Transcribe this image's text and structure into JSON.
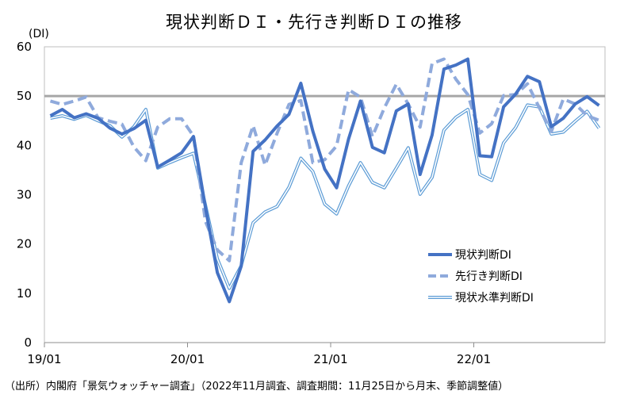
{
  "title": "現状判断ＤＩ・先行き判断ＤＩの推移",
  "source": "（出所）内閣府「景気ウォッチャー調査」（2022年11月調査、調査期間：11月25日から月末、季節調整値）",
  "chart_data": {
    "type": "line",
    "title": "現状判断ＤＩ・先行き判断ＤＩの推移",
    "ylabel": "(DI)",
    "ylim": [
      0,
      60
    ],
    "yticks": [
      "0",
      "10",
      "20",
      "30",
      "40",
      "50",
      "60"
    ],
    "x": [
      "19/01",
      "19/02",
      "19/03",
      "19/04",
      "19/05",
      "19/06",
      "19/07",
      "19/08",
      "19/09",
      "19/10",
      "19/11",
      "19/12",
      "20/01",
      "20/02",
      "20/03",
      "20/04",
      "20/05",
      "20/06",
      "20/07",
      "20/08",
      "20/09",
      "20/10",
      "20/11",
      "20/12",
      "21/01",
      "21/02",
      "21/03",
      "21/04",
      "21/05",
      "21/06",
      "21/07",
      "21/08",
      "21/09",
      "21/10",
      "21/11",
      "21/12",
      "22/01",
      "22/02",
      "22/03",
      "22/04",
      "22/05",
      "22/06",
      "22/07",
      "22/08",
      "22/09",
      "22/10",
      "22/11"
    ],
    "xticks": [
      "19/01",
      "20/01",
      "21/01",
      "22/01"
    ],
    "reference_line": 50,
    "legend_position": "bottom-right",
    "grid": false,
    "series": [
      {
        "name": "現状判断DI",
        "style": "solid-thick",
        "color": "#4472c4",
        "values": [
          46.0,
          47.3,
          45.6,
          46.4,
          45.5,
          43.5,
          42.3,
          43.4,
          45.1,
          35.6,
          37.0,
          38.5,
          41.8,
          27.4,
          14.2,
          8.3,
          15.5,
          38.8,
          41.1,
          43.9,
          46.3,
          52.6,
          42.9,
          35.2,
          31.4,
          41.3,
          49.0,
          39.6,
          38.5,
          47.0,
          48.4,
          34.1,
          42.1,
          55.5,
          56.3,
          57.5,
          37.9,
          37.7,
          47.8,
          50.4,
          54.0,
          52.9,
          43.8,
          45.5,
          48.4,
          49.9,
          48.1
        ]
      },
      {
        "name": "先行き判断DI",
        "style": "dashed",
        "color": "#8faadc",
        "values": [
          49.0,
          48.3,
          49.0,
          49.8,
          45.6,
          44.9,
          44.3,
          39.7,
          36.9,
          43.7,
          45.4,
          45.4,
          41.9,
          24.6,
          18.8,
          16.6,
          36.5,
          44.0,
          36.0,
          42.4,
          48.3,
          49.1,
          36.5,
          37.1,
          39.9,
          51.3,
          49.8,
          41.8,
          47.6,
          52.4,
          48.4,
          43.7,
          56.6,
          57.5,
          53.4,
          50.3,
          42.5,
          44.4,
          50.1,
          50.3,
          52.5,
          47.6,
          42.8,
          49.4,
          48.4,
          46.0,
          45.1
        ]
      },
      {
        "name": "現状水準判断DI",
        "style": "double-thin",
        "color": "#5b9bd5",
        "values": [
          45.5,
          46.0,
          45.3,
          46.1,
          45.0,
          44.0,
          41.7,
          43.8,
          47.3,
          35.4,
          36.5,
          37.5,
          38.4,
          27.9,
          17.0,
          11.0,
          15.6,
          24.3,
          26.5,
          27.6,
          31.5,
          37.4,
          34.7,
          28.1,
          26.1,
          31.8,
          36.5,
          32.5,
          31.4,
          35.4,
          39.5,
          30.1,
          33.5,
          43.1,
          45.7,
          47.3,
          34.1,
          32.9,
          40.5,
          43.6,
          48.2,
          47.8,
          42.3,
          42.7,
          44.9,
          46.9,
          43.5
        ]
      }
    ]
  }
}
